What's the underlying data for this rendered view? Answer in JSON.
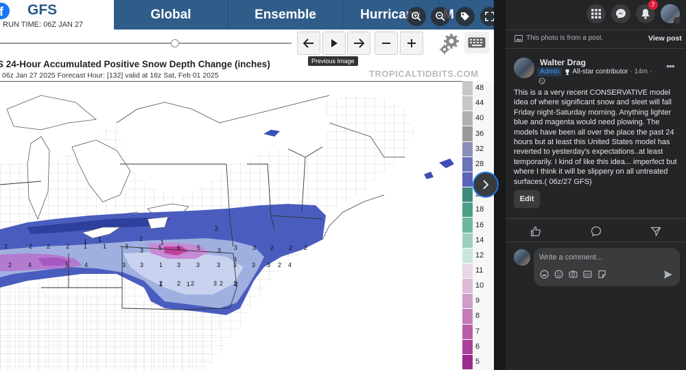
{
  "site": {
    "model": "GFS",
    "run_time": "RUN TIME: 06Z JAN 27",
    "nav": [
      "Global",
      "Ensemble",
      "Hurricane",
      "M"
    ],
    "tooltip": "Previous Image",
    "credit": "TROPICALTIDBITS.COM",
    "map_title": "S 24-Hour Accumulated Positive Snow Depth Change (inches)",
    "map_subtitle": "06z Jan 27 2025   Forecast Hour: [132]   valid at 18z Sat, Feb 01 2025",
    "legend_labels": [
      "48",
      "44",
      "40",
      "36",
      "32",
      "28",
      "24",
      "20",
      "18",
      "16",
      "14",
      "12",
      "11",
      "10",
      "9",
      "8",
      "7",
      "6",
      "5"
    ],
    "legend_colors": [
      "#c7c7c7",
      "#c7c7c7",
      "#b0b0b0",
      "#9a9a9a",
      "#8a8fb8",
      "#6b74b8",
      "#5a63b5",
      "#3d8a7c",
      "#4d9f88",
      "#6db89e",
      "#9bd0c0",
      "#c8e6df",
      "#e8d7e4",
      "#dcbcd6",
      "#d19dc8",
      "#c57cba",
      "#b85daa",
      "#a8429b",
      "#9a2c8b"
    ],
    "map_numbers": [
      {
        "t": "2"
      },
      {
        "t": "1"
      },
      {
        "t": "1"
      },
      {
        "t": "2"
      },
      {
        "t": "1"
      },
      {
        "t": "2"
      },
      {
        "t": "2"
      },
      {
        "t": "2"
      },
      {
        "t": "2"
      },
      {
        "t": "1"
      },
      {
        "t": "1"
      },
      {
        "t": "3"
      },
      {
        "t": "3"
      },
      {
        "t": "5"
      },
      {
        "t": "6"
      },
      {
        "t": "5"
      },
      {
        "t": "3"
      },
      {
        "t": "3"
      },
      {
        "t": "3"
      },
      {
        "t": "2"
      },
      {
        "t": "2"
      },
      {
        "t": "2"
      },
      {
        "t": "3"
      },
      {
        "t": "2"
      },
      {
        "t": "4"
      },
      {
        "t": "5"
      },
      {
        "t": "4"
      },
      {
        "t": "1"
      },
      {
        "t": "3"
      },
      {
        "t": "3"
      },
      {
        "t": "3"
      },
      {
        "t": "3"
      },
      {
        "t": "3"
      },
      {
        "t": "3"
      },
      {
        "t": "3"
      },
      {
        "t": "3"
      },
      {
        "t": "2"
      },
      {
        "t": "4"
      },
      {
        "t": "2"
      },
      {
        "t": "2"
      },
      {
        "t": "1"
      },
      {
        "t": "2"
      },
      {
        "t": "1"
      },
      {
        "t": "2"
      },
      {
        "t": "3"
      },
      {
        "t": "2"
      },
      {
        "t": "1"
      }
    ]
  },
  "panel": {
    "notification_count": "7",
    "photo_note": "This photo is from a post.",
    "view_post": "View post",
    "author": "Walter Drag",
    "admin_badge": "Admin",
    "contributor_badge": "All-star contributor",
    "time": "· 14m ·",
    "post_text": "This is a a very recent CONSERVATIVE model idea of where significant snow and sleet will fall Friday night-Saturday morning. Anything lighter blue and magenta would need plowing. The models have been all over the place the past 24 hours but at least this United States model has reverted to yesterday's expectations..at least temporarily. I kind of like this idea... imperfect but where I think it will be slippery on all untreated surfaces.( 06z/27 GFS)",
    "edit_label": "Edit",
    "comment_placeholder": "Write a comment..."
  }
}
